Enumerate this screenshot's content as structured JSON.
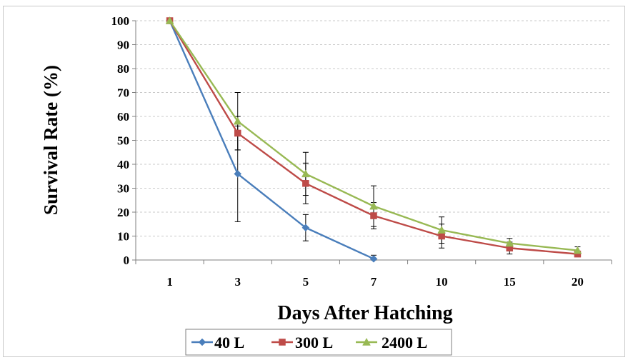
{
  "chart_data": {
    "type": "line",
    "xlabel": "Days After Hatching",
    "ylabel": "Survival Rate (%)",
    "categories": [
      "1",
      "3",
      "5",
      "7",
      "10",
      "15",
      "20"
    ],
    "ylim": [
      0,
      100
    ],
    "yticks": [
      0,
      10,
      20,
      30,
      40,
      50,
      60,
      70,
      80,
      90,
      100
    ],
    "grid": "horizontal dashed",
    "legend_position": "bottom",
    "series": [
      {
        "name": "40 L",
        "color": "#4a7ebb",
        "marker": "diamond",
        "values": [
          100,
          36,
          13.5,
          0.5,
          null,
          null,
          null
        ],
        "error": [
          0,
          20,
          5.5,
          1.5,
          null,
          null,
          null
        ]
      },
      {
        "name": "300 L",
        "color": "#be4b48",
        "marker": "square",
        "values": [
          100,
          53,
          32,
          18.5,
          10,
          5,
          2.5
        ],
        "error": [
          0,
          7,
          8.5,
          5.5,
          5,
          2.5,
          1
        ]
      },
      {
        "name": "2400 L",
        "color": "#98b954",
        "marker": "triangle",
        "values": [
          100,
          58,
          36,
          22.5,
          12.5,
          7,
          4
        ],
        "error": [
          0,
          12,
          9,
          8.5,
          5.5,
          2,
          1.5
        ]
      }
    ]
  }
}
